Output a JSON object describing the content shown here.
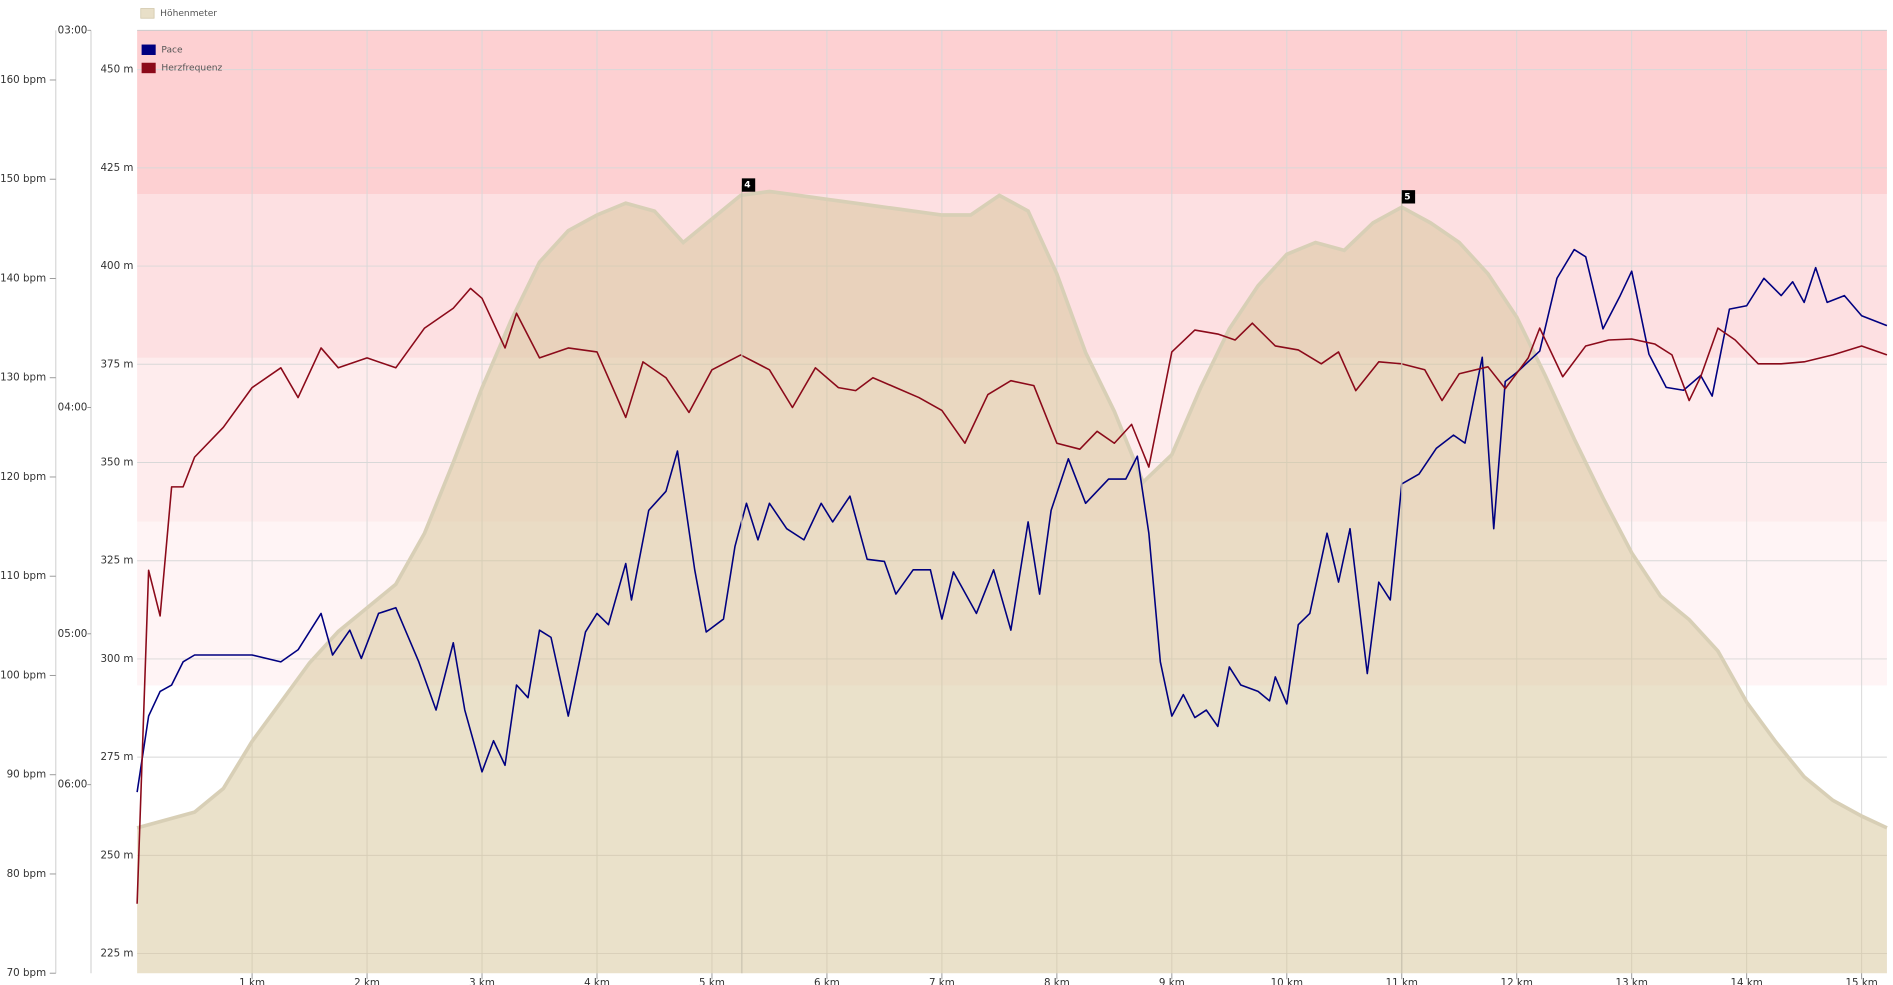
{
  "chart_data": {
    "type": "line",
    "xlim": [
      0,
      15.22
    ],
    "xticks": [
      {
        "value": 1,
        "label": "1 km"
      },
      {
        "value": 2,
        "label": "2 km"
      },
      {
        "value": 3,
        "label": "3 km"
      },
      {
        "value": 4,
        "label": "4 km"
      },
      {
        "value": 5,
        "label": "5 km"
      },
      {
        "value": 6,
        "label": "6 km"
      },
      {
        "value": 7,
        "label": "7 km"
      },
      {
        "value": 8,
        "label": "8 km"
      },
      {
        "value": 9,
        "label": "9 km"
      },
      {
        "value": 10,
        "label": "10 km"
      },
      {
        "value": 11,
        "label": "11 km"
      },
      {
        "value": 12,
        "label": "12 km"
      },
      {
        "value": 13,
        "label": "13 km"
      },
      {
        "value": 14,
        "label": "14 km"
      },
      {
        "value": 15,
        "label": "15 km"
      }
    ],
    "ylim": [
      220,
      460
    ],
    "yticks": [
      {
        "value": 225,
        "label": "225 m"
      },
      {
        "value": 250,
        "label": "250 m"
      },
      {
        "value": 275,
        "label": "275 m"
      },
      {
        "value": 300,
        "label": "300 m"
      },
      {
        "value": 325,
        "label": "325 m"
      },
      {
        "value": 350,
        "label": "350 m"
      },
      {
        "value": 375,
        "label": "375 m"
      },
      {
        "value": 400,
        "label": "400 m"
      },
      {
        "value": 425,
        "label": "425 m"
      },
      {
        "value": 450,
        "label": "450 m"
      }
    ],
    "y2lim": [
      70,
      165
    ],
    "y2ticks": [
      {
        "value": 70,
        "label": "70 bpm"
      },
      {
        "value": 80,
        "label": "80 bpm"
      },
      {
        "value": 90,
        "label": "90 bpm"
      },
      {
        "value": 100,
        "label": "100 bpm"
      },
      {
        "value": 110,
        "label": "110 bpm"
      },
      {
        "value": 120,
        "label": "120 bpm"
      },
      {
        "value": 130,
        "label": "130 bpm"
      },
      {
        "value": 140,
        "label": "140 bpm"
      },
      {
        "value": 150,
        "label": "150 bpm"
      },
      {
        "value": 160,
        "label": "160 bpm"
      }
    ],
    "y3lim": [
      8,
      3
    ],
    "y3scale": "reciprocal",
    "y3ticks": [
      {
        "value": 3,
        "label": "03:00"
      },
      {
        "value": 4,
        "label": "04:00"
      },
      {
        "value": 5,
        "label": "05:00"
      },
      {
        "value": 6,
        "label": "06:00"
      }
    ],
    "grid": true,
    "zones": [
      {
        "from": 99,
        "to": 115.5,
        "color": "#fff4f5"
      },
      {
        "from": 115.5,
        "to": 132,
        "color": "#feeced"
      },
      {
        "from": 132,
        "to": 148.5,
        "color": "#fde0e2"
      },
      {
        "from": 148.5,
        "to": 165,
        "color": "#fdd0d2"
      }
    ],
    "markers": [
      {
        "x": 5.26,
        "label": "4"
      },
      {
        "x": 11.0,
        "label": "5"
      }
    ],
    "series": [
      {
        "name": "Höhenmeter",
        "type": "area",
        "axis": "y",
        "color": "#d6c496",
        "fill_opacity": 0.5,
        "stroke": "#d8cfb6",
        "x": [
          0,
          0.25,
          0.5,
          0.75,
          1,
          1.25,
          1.5,
          1.75,
          2,
          2.25,
          2.5,
          2.75,
          3,
          3.25,
          3.5,
          3.75,
          4,
          4.25,
          4.5,
          4.75,
          5,
          5.25,
          5.5,
          5.75,
          6,
          6.25,
          6.5,
          6.75,
          7,
          7.25,
          7.5,
          7.75,
          8,
          8.25,
          8.5,
          8.75,
          9,
          9.25,
          9.5,
          9.75,
          10,
          10.25,
          10.5,
          10.75,
          11,
          11.25,
          11.5,
          11.75,
          12,
          12.25,
          12.5,
          12.75,
          13,
          13.25,
          13.5,
          13.75,
          14,
          14.25,
          14.5,
          14.75,
          15,
          15.22
        ],
        "values": [
          257,
          259,
          261,
          267,
          279,
          289,
          299,
          307,
          313,
          319,
          332,
          350,
          369,
          386,
          401,
          409,
          413,
          416,
          414,
          406,
          412,
          418,
          419,
          418,
          417,
          416,
          415,
          414,
          413,
          413,
          418,
          414,
          398,
          378,
          363,
          345,
          352,
          369,
          384,
          395,
          403,
          406,
          404,
          411,
          415,
          411,
          406,
          398,
          387,
          372,
          356,
          341,
          327,
          316,
          310,
          302,
          289,
          279,
          270,
          264,
          260,
          257
        ]
      },
      {
        "name": "Pace",
        "type": "line",
        "axis": "y3",
        "color": "#000080",
        "x": [
          0,
          0.1,
          0.2,
          0.3,
          0.4,
          0.5,
          0.75,
          1,
          1.25,
          1.4,
          1.6,
          1.7,
          1.85,
          1.95,
          2.1,
          2.25,
          2.45,
          2.6,
          2.75,
          2.85,
          3,
          3.1,
          3.2,
          3.3,
          3.4,
          3.5,
          3.6,
          3.75,
          3.9,
          4,
          4.1,
          4.25,
          4.3,
          4.45,
          4.6,
          4.7,
          4.85,
          4.95,
          5.1,
          5.2,
          5.3,
          5.4,
          5.5,
          5.65,
          5.8,
          5.95,
          6.05,
          6.2,
          6.35,
          6.5,
          6.6,
          6.75,
          6.9,
          7,
          7.1,
          7.3,
          7.45,
          7.6,
          7.75,
          7.85,
          7.95,
          8.1,
          8.25,
          8.45,
          8.6,
          8.7,
          8.8,
          8.9,
          9,
          9.1,
          9.2,
          9.3,
          9.4,
          9.5,
          9.6,
          9.75,
          9.85,
          9.9,
          10,
          10.1,
          10.2,
          10.35,
          10.45,
          10.55,
          10.7,
          10.8,
          10.9,
          11,
          11.15,
          11.3,
          11.45,
          11.55,
          11.7,
          11.8,
          11.9,
          12,
          12.2,
          12.35,
          12.5,
          12.6,
          12.75,
          12.9,
          13,
          13.15,
          13.3,
          13.45,
          13.6,
          13.7,
          13.85,
          14,
          14.15,
          14.3,
          14.4,
          14.5,
          14.6,
          14.7,
          14.85,
          15,
          15.22
        ],
        "values": [
          6.06,
          5.5,
          5.34,
          5.3,
          5.16,
          5.12,
          5.12,
          5.12,
          5.16,
          5.09,
          4.89,
          5.12,
          4.98,
          5.14,
          4.89,
          4.86,
          5.16,
          5.46,
          5.05,
          5.46,
          5.9,
          5.67,
          5.85,
          5.3,
          5.38,
          4.98,
          5.02,
          5.5,
          4.99,
          4.89,
          4.95,
          4.64,
          4.82,
          4.4,
          4.32,
          4.16,
          4.67,
          4.99,
          4.92,
          4.56,
          4.37,
          4.53,
          4.37,
          4.48,
          4.53,
          4.37,
          4.45,
          4.34,
          4.62,
          4.63,
          4.79,
          4.67,
          4.67,
          4.92,
          4.68,
          4.89,
          4.67,
          4.98,
          4.45,
          4.79,
          4.4,
          4.19,
          4.37,
          4.27,
          4.27,
          4.18,
          4.5,
          5.16,
          5.5,
          5.36,
          5.51,
          5.46,
          5.57,
          5.19,
          5.3,
          5.34,
          5.4,
          5.25,
          5.42,
          4.95,
          4.89,
          4.5,
          4.73,
          4.48,
          5.23,
          4.73,
          4.82,
          4.29,
          4.25,
          4.15,
          4.1,
          4.13,
          3.83,
          4.48,
          3.91,
          3.88,
          3.81,
          3.59,
          3.51,
          3.53,
          3.74,
          3.64,
          3.57,
          3.82,
          3.93,
          3.94,
          3.89,
          3.96,
          3.68,
          3.67,
          3.59,
          3.64,
          3.6,
          3.66,
          3.56,
          3.66,
          3.64,
          3.7,
          3.73
        ]
      },
      {
        "name": "Herzfrequenz",
        "type": "line",
        "axis": "y2",
        "color": "#8b0a1a",
        "x": [
          0,
          0.1,
          0.2,
          0.3,
          0.4,
          0.5,
          0.75,
          1,
          1.25,
          1.4,
          1.6,
          1.75,
          2,
          2.25,
          2.5,
          2.75,
          2.9,
          3,
          3.2,
          3.3,
          3.5,
          3.75,
          4,
          4.25,
          4.4,
          4.6,
          4.8,
          5,
          5.25,
          5.5,
          5.7,
          5.9,
          6.1,
          6.25,
          6.4,
          6.6,
          6.8,
          7,
          7.2,
          7.4,
          7.6,
          7.8,
          8,
          8.2,
          8.35,
          8.5,
          8.65,
          8.8,
          9,
          9.2,
          9.4,
          9.55,
          9.7,
          9.9,
          10.1,
          10.3,
          10.45,
          10.6,
          10.8,
          11,
          11.2,
          11.35,
          11.5,
          11.75,
          11.9,
          12.1,
          12.2,
          12.4,
          12.6,
          12.8,
          13,
          13.2,
          13.35,
          13.5,
          13.6,
          13.75,
          13.9,
          14.1,
          14.3,
          14.5,
          14.75,
          15,
          15.22
        ],
        "values": [
          77,
          110.6,
          106,
          119,
          119,
          122,
          125,
          129,
          131,
          128,
          133,
          131,
          132,
          131,
          135,
          137,
          139,
          138,
          133,
          136.5,
          132,
          133,
          132.6,
          126,
          131.6,
          130,
          126.5,
          130.8,
          132.3,
          130.8,
          127,
          131,
          129,
          128.7,
          130,
          129,
          128,
          126.7,
          123.4,
          128.3,
          129.7,
          129.2,
          123.4,
          122.8,
          124.6,
          123.4,
          125.3,
          121,
          132.6,
          134.8,
          134.4,
          133.8,
          135.5,
          133.2,
          132.8,
          131.4,
          132.6,
          128.7,
          131.6,
          131.4,
          130.8,
          127.7,
          130.4,
          131.1,
          128.9,
          132,
          135,
          130.1,
          133.2,
          133.8,
          133.9,
          133.4,
          132.3,
          127.7,
          130.1,
          135,
          133.8,
          131.4,
          131.4,
          131.6,
          132.3,
          133.2,
          132.3
        ]
      }
    ]
  }
}
